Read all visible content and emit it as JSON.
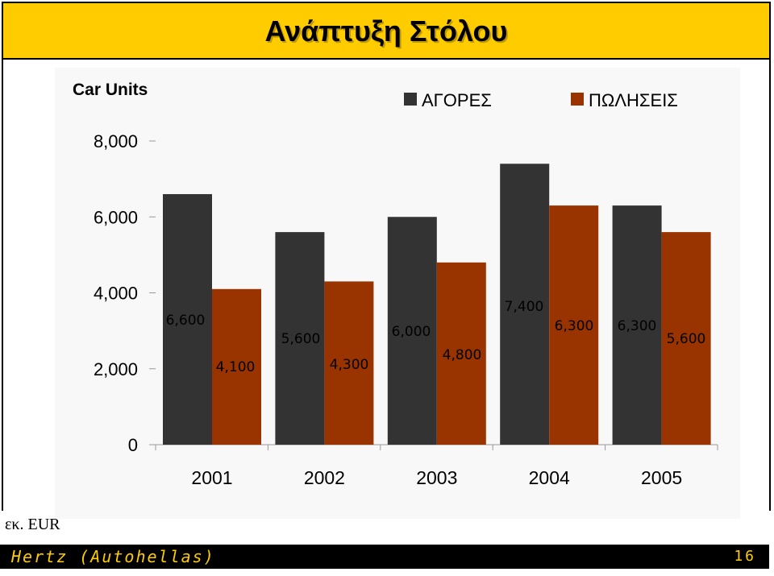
{
  "header": {
    "title": "Ανάπτυξη Στόλου"
  },
  "units_note": "εκ. EUR",
  "footer": {
    "left": "Hertz (Autohellas)",
    "page_number": "16"
  },
  "colors": {
    "banner": "#ffcc00",
    "series1": "#333333",
    "series2": "#993300",
    "footer_text": "#ffcc00"
  },
  "chart_data": {
    "type": "bar",
    "ylabel": "Car Units",
    "categories": [
      "2001",
      "2002",
      "2003",
      "2004",
      "2005"
    ],
    "series": [
      {
        "name": "ΑΓΟΡΕΣ",
        "values": [
          6600,
          5600,
          6000,
          7400,
          6300
        ],
        "labels": [
          "6,600",
          "5,600",
          "6,000",
          "7,400",
          "6,300"
        ]
      },
      {
        "name": "ΠΩΛΗΣΕΙΣ",
        "values": [
          4100,
          4300,
          4800,
          6300,
          5600
        ],
        "labels": [
          "4,100",
          "4,300",
          "4,800",
          "6,300",
          "5,600"
        ]
      }
    ],
    "yticks": [
      0,
      2000,
      4000,
      6000,
      8000
    ],
    "ytick_labels": [
      "0",
      "2,000",
      "4,000",
      "6,000",
      "8,000"
    ],
    "ylim": [
      0,
      8000
    ],
    "grid": false,
    "legend": "top-right"
  }
}
